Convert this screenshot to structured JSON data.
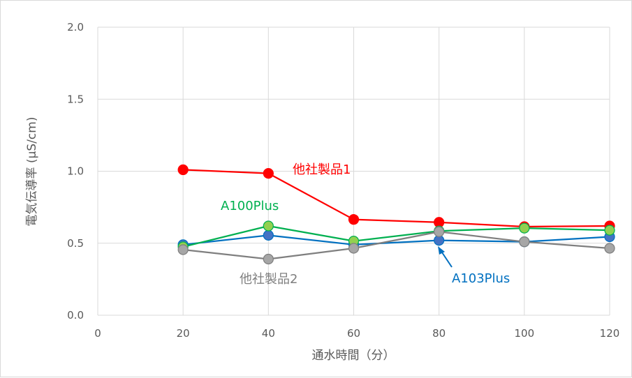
{
  "chart_data": {
    "type": "line",
    "xlabel": "通水時間（分）",
    "ylabel": "電気伝導率 (μS/cm)",
    "xlim": [
      0,
      120
    ],
    "ylim": [
      0.0,
      2.0
    ],
    "x_ticks": [
      "0",
      "20",
      "40",
      "60",
      "80",
      "100",
      "120"
    ],
    "y_ticks": [
      "0.0",
      "0.5",
      "1.0",
      "1.5",
      "2.0"
    ],
    "grid": true,
    "legend": "inline labels",
    "series": [
      {
        "name": "他社製品1",
        "color": "#ff0000",
        "marker_fill": "#ff0000",
        "x": [
          20,
          40,
          60,
          80,
          100,
          120
        ],
        "values": [
          1.01,
          0.985,
          0.665,
          0.645,
          0.615,
          0.62
        ]
      },
      {
        "name": "A103Plus",
        "color": "#0070c0",
        "marker_fill": "#4472c4",
        "x": [
          20,
          40,
          60,
          80,
          100,
          120
        ],
        "values": [
          0.49,
          0.555,
          0.49,
          0.52,
          0.51,
          0.545
        ]
      },
      {
        "name": "A100Plus",
        "color": "#00b050",
        "marker_fill": "#92d050",
        "x": [
          20,
          40,
          60,
          80,
          100,
          120
        ],
        "values": [
          0.475,
          0.62,
          0.515,
          0.585,
          0.605,
          0.59
        ]
      },
      {
        "name": "他社製品2",
        "color": "#7f7f7f",
        "marker_fill": "#a6a6a6",
        "x": [
          20,
          40,
          60,
          80,
          100,
          120
        ],
        "values": [
          0.455,
          0.39,
          0.465,
          0.58,
          0.51,
          0.465
        ]
      }
    ]
  }
}
